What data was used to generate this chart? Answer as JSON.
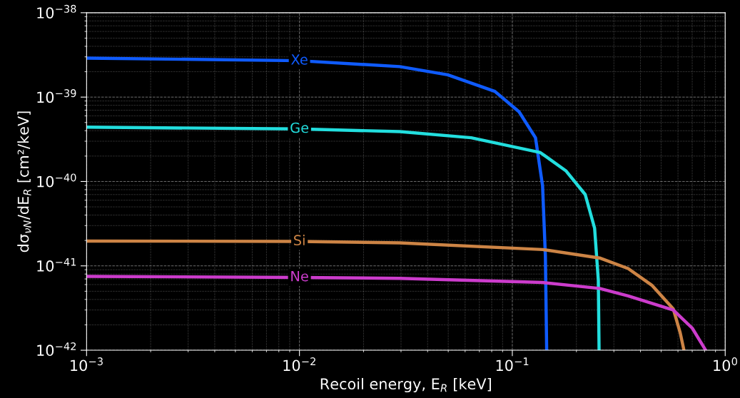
{
  "chart_data": {
    "type": "line",
    "xlabel": "Recoil energy, E$_{R}$ [keV]",
    "ylabel": "dσ$_{νN}$/dE$_{R}$ [cm²/keV]",
    "log": "xy",
    "grid": true,
    "line_style": "solid",
    "xlim": [
      0.001,
      1
    ],
    "xticks": [
      {
        "value": 0.001,
        "label": "10$^{−3}$"
      },
      {
        "value": 0.01,
        "label": "10$^{−2}$"
      },
      {
        "value": 0.1,
        "label": "10$^{−1}$"
      },
      {
        "value": 1,
        "label": "10$^{0}$"
      }
    ],
    "ylim": [
      1e-42,
      1e-38
    ],
    "yticks": [
      {
        "value": 1e-42,
        "label": "10$^{−42}$"
      },
      {
        "value": 1e-41,
        "label": "10$^{−41}$"
      },
      {
        "value": 1e-40,
        "label": "10$^{−40}$"
      },
      {
        "value": 1e-39,
        "label": "10$^{−39}$"
      },
      {
        "value": 1e-38,
        "label": "10$^{−38}$"
      }
    ],
    "series": [
      {
        "name": "Xe",
        "color": "#0f5bff",
        "x": [
          0.001,
          0.01,
          0.0296,
          0.0497,
          0.0828,
          0.1076,
          0.1285,
          0.1387,
          0.143,
          0.145
        ],
        "values": [
          2.9e-39,
          2.7e-39,
          2.3e-39,
          1.84e-39,
          1.17e-39,
          6.7e-40,
          3.3e-40,
          8.9e-41,
          1.3e-41,
          1e-42
        ]
      },
      {
        "name": "Ge",
        "color": "#22dede",
        "x": [
          0.001,
          0.01,
          0.0296,
          0.0641,
          0.1355,
          0.179,
          0.22,
          0.2435,
          0.2535,
          0.2556
        ],
        "values": [
          4.4e-40,
          4.2e-40,
          3.9e-40,
          3.3e-40,
          2.2e-40,
          1.33e-40,
          7e-41,
          2.8e-41,
          6.8e-42,
          1e-42
        ]
      },
      {
        "name": "Si",
        "color": "#cd8445",
        "x": [
          0.001,
          0.01,
          0.0296,
          0.139,
          0.257,
          0.35,
          0.452,
          0.57,
          0.615,
          0.64
        ],
        "values": [
          1.97e-41,
          1.95e-41,
          1.87e-41,
          1.56e-41,
          1.24e-41,
          9.3e-42,
          5.9e-42,
          3.1e-42,
          1.6e-42,
          1e-42
        ]
      },
      {
        "name": "Ne",
        "color": "#cc3ccc",
        "x": [
          0.001,
          0.01,
          0.0296,
          0.139,
          0.257,
          0.35,
          0.57,
          0.7,
          0.81
        ],
        "values": [
          7.5e-42,
          7.3e-42,
          7.1e-42,
          6.35e-42,
          5.4e-42,
          4.4e-42,
          3e-42,
          1.83e-42,
          1e-42
        ]
      }
    ]
  }
}
